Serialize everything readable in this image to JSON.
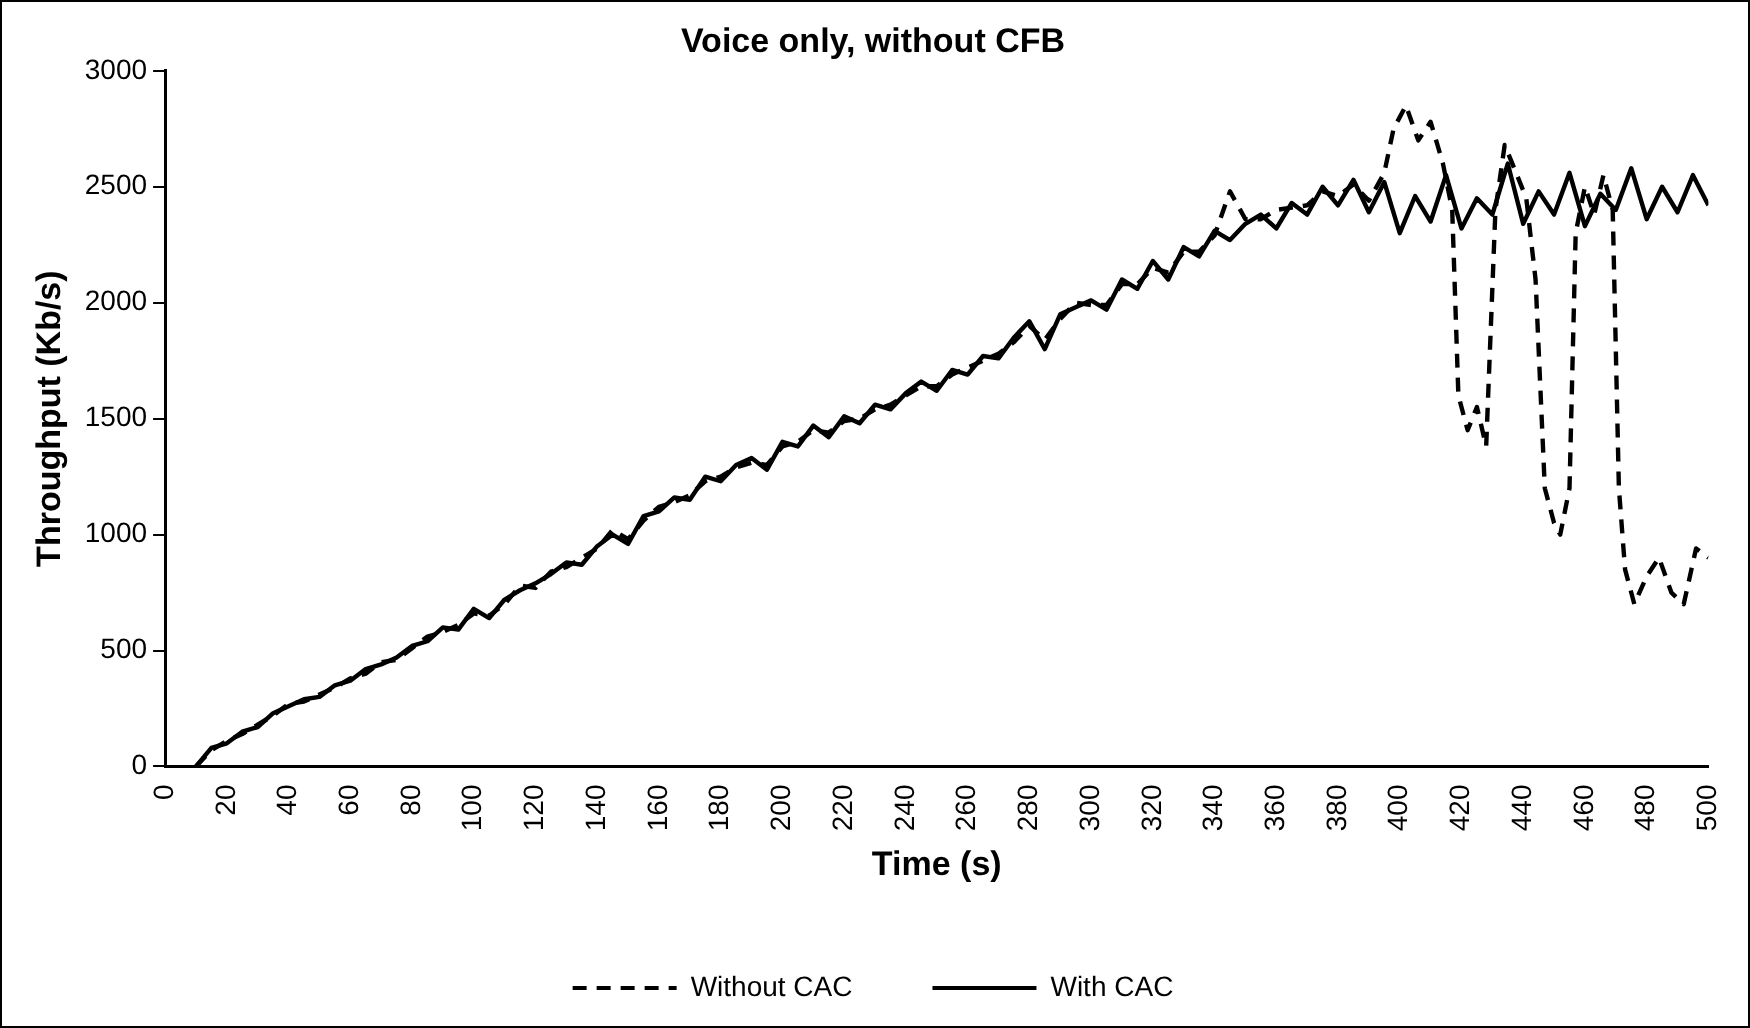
{
  "chart_data": {
    "type": "line",
    "title": "Voice only, without CFB",
    "xlabel": "Time (s)",
    "ylabel": "Throughput (Kb/s)",
    "xlim": [
      0,
      500
    ],
    "xticks": [
      0,
      20,
      40,
      60,
      80,
      100,
      120,
      140,
      160,
      180,
      200,
      220,
      240,
      260,
      280,
      300,
      320,
      340,
      360,
      380,
      400,
      420,
      440,
      460,
      480,
      500
    ],
    "ylim": [
      0,
      3000
    ],
    "yticks": [
      0,
      500,
      1000,
      1500,
      2000,
      2500,
      3000
    ],
    "grid": false,
    "legend": "bottom",
    "marker": "none",
    "series": [
      {
        "name": "Without CAC",
        "color": "#000000",
        "line_style": "dashed",
        "x": [
          10,
          15,
          20,
          25,
          30,
          35,
          40,
          45,
          50,
          55,
          60,
          65,
          70,
          75,
          80,
          85,
          90,
          95,
          100,
          105,
          110,
          115,
          120,
          125,
          130,
          135,
          140,
          145,
          150,
          155,
          160,
          165,
          170,
          175,
          180,
          185,
          190,
          195,
          200,
          205,
          210,
          215,
          220,
          225,
          230,
          235,
          240,
          245,
          250,
          255,
          260,
          265,
          270,
          275,
          280,
          285,
          290,
          295,
          300,
          305,
          310,
          315,
          320,
          325,
          330,
          335,
          340,
          345,
          350,
          355,
          360,
          365,
          370,
          375,
          380,
          385,
          390,
          395,
          398,
          402,
          406,
          410,
          414,
          417,
          419,
          422,
          425,
          428,
          431,
          434,
          438,
          441,
          444,
          447,
          450,
          452,
          455,
          457,
          460,
          463,
          466,
          469,
          471,
          473,
          476,
          480,
          484,
          488,
          492,
          496,
          500
        ],
        "values": [
          0,
          70,
          110,
          140,
          180,
          220,
          270,
          280,
          310,
          340,
          380,
          400,
          450,
          460,
          510,
          560,
          580,
          610,
          660,
          650,
          700,
          780,
          770,
          840,
          860,
          900,
          940,
          1020,
          980,
          1060,
          1120,
          1140,
          1170,
          1230,
          1250,
          1290,
          1310,
          1300,
          1380,
          1400,
          1450,
          1440,
          1490,
          1500,
          1540,
          1560,
          1600,
          1640,
          1640,
          1690,
          1720,
          1750,
          1780,
          1830,
          1900,
          1840,
          1930,
          2000,
          1990,
          1990,
          2080,
          2080,
          2150,
          2130,
          2220,
          2220,
          2290,
          2480,
          2360,
          2360,
          2400,
          2410,
          2420,
          2480,
          2460,
          2510,
          2440,
          2560,
          2750,
          2850,
          2700,
          2780,
          2600,
          2400,
          1600,
          1450,
          1550,
          1380,
          2400,
          2680,
          2550,
          2450,
          2100,
          1200,
          1050,
          1000,
          1200,
          2300,
          2500,
          2380,
          2550,
          2400,
          1200,
          850,
          700,
          820,
          900,
          750,
          700,
          940,
          900
        ]
      },
      {
        "name": "With CAC",
        "color": "#000000",
        "line_style": "solid",
        "x": [
          10,
          15,
          20,
          25,
          30,
          35,
          40,
          45,
          50,
          55,
          60,
          65,
          70,
          75,
          80,
          85,
          90,
          95,
          100,
          105,
          110,
          115,
          120,
          125,
          130,
          135,
          140,
          145,
          150,
          155,
          160,
          165,
          170,
          175,
          180,
          185,
          190,
          195,
          200,
          205,
          210,
          215,
          220,
          225,
          230,
          235,
          240,
          245,
          250,
          255,
          260,
          265,
          270,
          275,
          280,
          285,
          290,
          295,
          300,
          305,
          310,
          315,
          320,
          325,
          330,
          335,
          340,
          345,
          350,
          355,
          360,
          365,
          370,
          375,
          380,
          385,
          390,
          395,
          400,
          405,
          410,
          415,
          420,
          425,
          430,
          435,
          440,
          445,
          450,
          455,
          460,
          465,
          470,
          475,
          480,
          485,
          490,
          495,
          500
        ],
        "values": [
          0,
          80,
          100,
          150,
          170,
          230,
          260,
          290,
          300,
          350,
          370,
          420,
          440,
          470,
          520,
          540,
          600,
          590,
          680,
          640,
          720,
          760,
          790,
          830,
          880,
          870,
          950,
          1000,
          960,
          1080,
          1100,
          1160,
          1150,
          1250,
          1230,
          1300,
          1330,
          1280,
          1400,
          1380,
          1470,
          1420,
          1510,
          1480,
          1560,
          1540,
          1610,
          1660,
          1620,
          1710,
          1690,
          1770,
          1760,
          1850,
          1920,
          1800,
          1950,
          1980,
          2010,
          1970,
          2100,
          2060,
          2180,
          2100,
          2240,
          2200,
          2310,
          2270,
          2340,
          2380,
          2320,
          2430,
          2380,
          2500,
          2420,
          2530,
          2390,
          2520,
          2300,
          2460,
          2350,
          2550,
          2320,
          2450,
          2380,
          2600,
          2340,
          2480,
          2380,
          2560,
          2330,
          2470,
          2400,
          2580,
          2360,
          2500,
          2390,
          2550,
          2420
        ]
      }
    ]
  }
}
